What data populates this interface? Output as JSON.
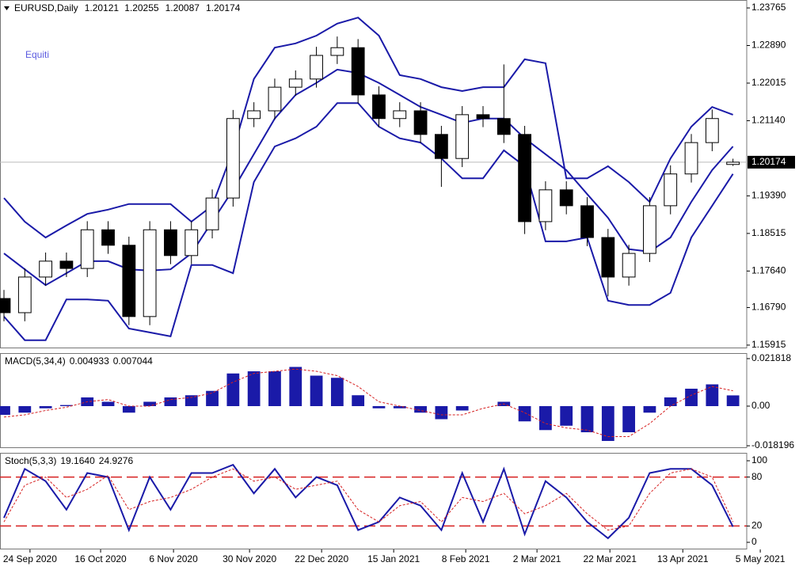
{
  "chart_data": [
    {
      "type": "candlestick",
      "title": "EURUSD,Daily",
      "watermark": "Equiti",
      "xlim": [
        -0.19,
        35.66
      ],
      "ylim": [
        1.1584,
        1.2395
      ],
      "yticks": [
        1.23765,
        {
          "value": 1.2289,
          "label": "1.22890"
        },
        1.22015,
        {
          "value": 1.2114,
          "label": "1.21140"
        },
        {
          "value": 1.1939,
          "label": "1.19390"
        },
        1.18515,
        {
          "value": 1.1764,
          "label": "1.17640"
        },
        {
          "value": 1.1679,
          "label": "1.16790"
        },
        1.15915
      ],
      "up_color": "#ffffff",
      "down_color": "#000000",
      "open": [
        1.17,
        1.1667,
        1.175,
        1.1787,
        1.177,
        1.186,
        1.1824,
        1.1658,
        1.186,
        1.18,
        1.186,
        1.1934,
        1.2119,
        1.2137,
        1.2192,
        1.2211,
        1.2266,
        1.2284,
        1.2174,
        1.2119,
        1.2137,
        1.2082,
        1.2026,
        1.2128,
        1.2119,
        1.2082,
        1.1879,
        1.1953,
        1.1916,
        1.1842,
        1.175,
        1.1805,
        1.1916,
        1.199,
        1.2063,
        1.20121
      ],
      "high": [
        1.172,
        1.177,
        1.1807,
        1.1807,
        1.188,
        1.188,
        1.1844,
        1.188,
        1.188,
        1.188,
        1.1954,
        1.2139,
        1.2157,
        1.2212,
        1.2231,
        1.2286,
        1.231,
        1.2304,
        1.2194,
        1.2157,
        1.2157,
        1.2102,
        1.2148,
        1.2148,
        1.2245,
        1.2102,
        1.1973,
        1.1973,
        1.1936,
        1.1862,
        1.1825,
        1.1936,
        1.201,
        1.2083,
        1.214,
        1.20255
      ],
      "low": [
        1.1647,
        1.1647,
        1.173,
        1.175,
        1.175,
        1.1804,
        1.1638,
        1.1638,
        1.178,
        1.178,
        1.184,
        1.1914,
        1.2099,
        1.2117,
        1.2172,
        1.2191,
        1.2246,
        1.2154,
        1.2099,
        1.2099,
        1.2062,
        1.196,
        1.2006,
        1.2099,
        1.2062,
        1.185,
        1.1859,
        1.1896,
        1.1822,
        1.1705,
        1.173,
        1.1785,
        1.1896,
        1.197,
        1.2043,
        1.20087
      ],
      "close": [
        1.1667,
        1.175,
        1.1787,
        1.177,
        1.186,
        1.1824,
        1.1658,
        1.186,
        1.18,
        1.186,
        1.1934,
        1.2119,
        1.2137,
        1.2192,
        1.2211,
        1.2266,
        1.2284,
        1.2174,
        1.2119,
        1.2137,
        1.2082,
        1.2026,
        1.2128,
        1.2119,
        1.2082,
        1.1879,
        1.1953,
        1.1916,
        1.1842,
        1.175,
        1.1805,
        1.1916,
        1.199,
        1.2063,
        1.2119,
        1.20174
      ],
      "overlays": [
        {
          "color": "#1a1aa8",
          "values": [
            1.1934,
            1.1879,
            1.1842,
            1.187,
            1.1897,
            1.1907,
            1.192,
            1.192,
            1.192,
            1.1879,
            1.1916,
            1.2045,
            1.2211,
            1.2284,
            1.2294,
            1.2312,
            1.234,
            1.2354,
            1.2312,
            1.222,
            1.2211,
            1.2192,
            1.2183,
            1.2192,
            1.2192,
            1.2257,
            1.2248,
            1.198,
            1.198,
            1.2008,
            1.1971,
            1.1925,
            1.2026,
            1.21,
            1.2146,
            1.2128
          ]
        },
        {
          "color": "#1a1aa8",
          "values": [
            1.1805,
            1.1768,
            1.1731,
            1.1759,
            1.1787,
            1.1787,
            1.1768,
            1.1765,
            1.1768,
            1.1805,
            1.1879,
            1.1953,
            1.2036,
            1.2119,
            1.2174,
            1.2202,
            1.2233,
            1.2225,
            1.2202,
            1.2174,
            1.2146,
            1.2128,
            1.2109,
            1.2119,
            1.2119,
            1.2073,
            1.2036,
            1.1999,
            1.1943,
            1.1888,
            1.1815,
            1.1809,
            1.1842,
            1.1925,
            1.1999,
            1.2054
          ]
        },
        {
          "color": "#1a1aa8",
          "values": [
            1.1658,
            1.1603,
            1.1603,
            1.1698,
            1.1698,
            1.1695,
            1.163,
            1.1621,
            1.1612,
            1.1778,
            1.1778,
            1.1759,
            1.1971,
            1.2054,
            1.2073,
            1.21,
            1.2155,
            1.2155,
            1.21,
            1.2073,
            1.2063,
            1.2026,
            1.198,
            1.198,
            1.2045,
            1.2008,
            1.1833,
            1.1833,
            1.1842,
            1.1695,
            1.1685,
            1.1685,
            1.1713,
            1.1842,
            1.1916,
            1.199
          ]
        }
      ]
    },
    {
      "type": "bar",
      "title": "MACD(5,34,4)",
      "xlim": [
        -0.19,
        35.66
      ],
      "ylim": [
        -0.01927,
        0.02436
      ],
      "yticks": [
        0.021818,
        {
          "value": 0,
          "label": "0.00"
        },
        -0.018196
      ],
      "series": [
        {
          "color": "#1a1aa8",
          "values": [
            -0.004,
            -0.003,
            -0.001,
            0.0005,
            0.004,
            0.002,
            -0.003,
            0.002,
            0.004,
            0.005,
            0.007,
            0.015,
            0.016,
            0.016,
            0.018,
            0.014,
            0.013,
            0.005,
            -0.001,
            -0.001,
            -0.003,
            -0.006,
            -0.002,
            0.0,
            0.002,
            -0.007,
            -0.011,
            -0.009,
            -0.012,
            -0.016,
            -0.012,
            -0.003,
            0.004,
            0.008,
            0.01,
            0.004933
          ]
        },
        {
          "color": "#d62020",
          "dashed": true,
          "values": [
            -0.005,
            -0.004,
            -0.002,
            -0.0005,
            0.002,
            0.003,
            0.0,
            0.0,
            0.003,
            0.004,
            0.006,
            0.011,
            0.015,
            0.016,
            0.017,
            0.016,
            0.014,
            0.009,
            0.002,
            0.0,
            -0.002,
            -0.004,
            -0.004,
            -0.001,
            0.001,
            -0.003,
            -0.008,
            -0.01,
            -0.011,
            -0.014,
            -0.014,
            -0.008,
            0.0,
            0.005,
            0.009,
            0.007044
          ]
        }
      ]
    },
    {
      "type": "line",
      "title": "Stoch(5,3,3)",
      "readout": [
        {
          "value": 19.164,
          "label": "19.1640"
        },
        24.9276
      ],
      "xlim": [
        -0.19,
        35.66
      ],
      "ylim": [
        -8.7,
        109.7
      ],
      "yticks": [
        100,
        80,
        20,
        0
      ],
      "levels": [
        20,
        80
      ],
      "level_color": "#d62020",
      "xticks": [
        {
          "value": 1.25,
          "label": "24 Sep 2020"
        },
        {
          "value": 4.64,
          "label": "16 Oct 2020"
        },
        {
          "value": 8.14,
          "label": "6 Nov 2020"
        },
        {
          "value": 11.79,
          "label": "30 Nov 2020"
        },
        {
          "value": 15.25,
          "label": "22 Dec 2020"
        },
        {
          "value": 18.71,
          "label": "15 Jan 2021"
        },
        {
          "value": 22.17,
          "label": "8 Feb 2021"
        },
        {
          "value": 25.59,
          "label": "2 Mar 2021"
        },
        {
          "value": 29.09,
          "label": "22 Mar 2021"
        },
        {
          "value": 32.59,
          "label": "13 Apr 2021"
        },
        {
          "value": 36.31,
          "label": "5 May 2021"
        }
      ],
      "series": [
        {
          "color": "#1a1aa8",
          "values": [
            30,
            90,
            75,
            40,
            85,
            80,
            15,
            80,
            40,
            85,
            85,
            95,
            60,
            90,
            55,
            80,
            70,
            15,
            25,
            55,
            45,
            15,
            85,
            25,
            90,
            10,
            75,
            55,
            25,
            5,
            30,
            85,
            90,
            90,
            70,
            19.164
          ]
        },
        {
          "color": "#d62020",
          "dashed": true,
          "values": [
            25,
            70,
            80,
            55,
            65,
            82,
            40,
            50,
            55,
            65,
            80,
            90,
            75,
            80,
            65,
            70,
            75,
            40,
            25,
            45,
            50,
            25,
            55,
            50,
            60,
            35,
            45,
            60,
            35,
            15,
            20,
            60,
            85,
            90,
            80,
            24.9276
          ]
        }
      ]
    }
  ]
}
